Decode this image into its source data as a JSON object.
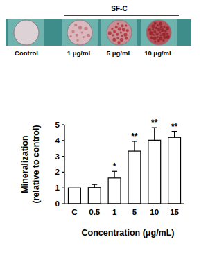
{
  "chart_data": {
    "type": "bar",
    "categories": [
      "C",
      "0.5",
      "1",
      "5",
      "10",
      "15"
    ],
    "values": [
      1,
      1.02,
      1.63,
      3.33,
      4.02,
      4.2
    ],
    "errors": [
      0,
      0.2,
      0.42,
      0.62,
      0.8,
      0.38
    ],
    "significance": [
      null,
      null,
      "*",
      "**",
      "**",
      "**"
    ],
    "color": "#ffffff",
    "x_label": "Concentration (μg/mL)",
    "y_label": [
      "Mineralization",
      "(relative to control)"
    ],
    "ylim": [
      0,
      5
    ],
    "yticks": [
      0,
      1,
      2,
      3,
      4,
      5
    ],
    "grid": false
  },
  "wells": {
    "group_label": "SF-C",
    "labels": [
      "Control",
      "1 μg/mL",
      "5 μg/mL",
      "10 μg/mL"
    ]
  }
}
